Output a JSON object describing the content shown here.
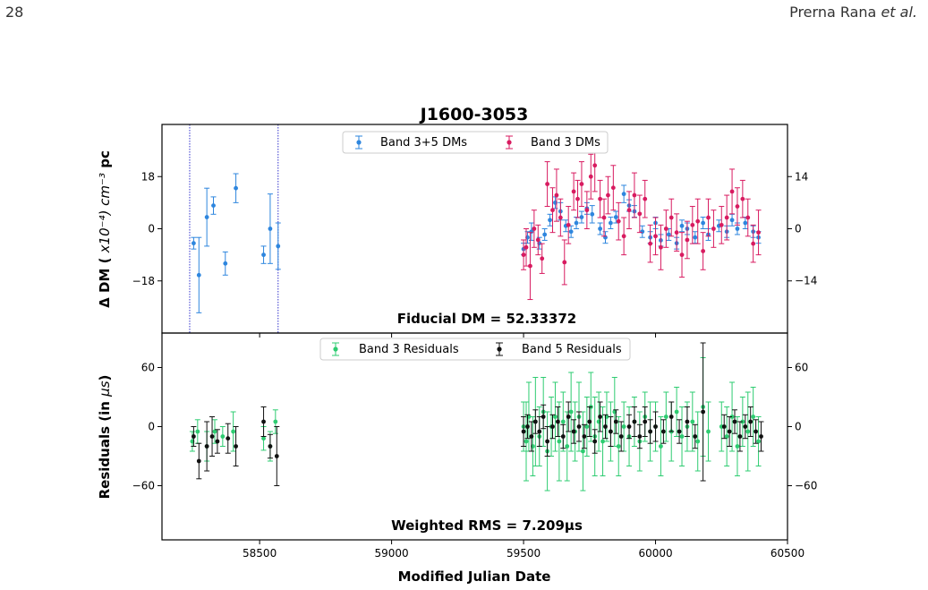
{
  "page": {
    "page_number": "28",
    "running_head_author": "Prerna Rana",
    "running_head_etal": "et al."
  },
  "chart_data": {
    "type": "scatter",
    "title": "J1600-3053",
    "xlabel": "Modified Julian Date",
    "xlim": [
      58130,
      60500
    ],
    "xticks": [
      58500,
      59000,
      59500,
      60000,
      60500
    ],
    "vertical_lines": [
      58235,
      58570
    ],
    "colors": {
      "band35_dm": "#2e86de",
      "band3_dm": "#d81b60",
      "band3_res": "#2ecc71",
      "band5_res": "#111111",
      "vline": "#3333cc"
    },
    "top_panel": {
      "ylabel_prefix": "Δ DM ( ",
      "ylabel_math": "x10⁻⁴) cm⁻³",
      "ylabel_suffix": " pc",
      "ylim": [
        -36,
        36
      ],
      "left_ticks": [
        -18,
        0,
        18
      ],
      "right_ticks": [
        -14,
        0,
        14
      ],
      "right_axis_scale": 0.7778,
      "annotation": "Fiducial DM = 52.33372",
      "legend": [
        "Band 3+5 DMs",
        "Band 3 DMs"
      ],
      "series": [
        {
          "name": "Band 3+5 DMs",
          "axis": "left",
          "x": [
            58250,
            58270,
            58300,
            58325,
            58370,
            58410,
            58515,
            58540,
            58570,
            59500,
            59515,
            59530,
            59560,
            59580,
            59600,
            59620,
            59640,
            59660,
            59680,
            59700,
            59720,
            59740,
            59760,
            59790,
            59810,
            59830,
            59850,
            59880,
            59900,
            59920,
            59950,
            59980,
            60000,
            60020,
            60050,
            60080,
            60100,
            60120,
            60150,
            60180,
            60200,
            60240,
            60270,
            60290,
            60310,
            60340,
            60370,
            60390
          ],
          "y": [
            -5,
            -16,
            4,
            8,
            -12,
            14,
            -9,
            0,
            -6,
            -7,
            -3,
            -1,
            -5,
            -2,
            3,
            9,
            6,
            1,
            -1,
            2,
            4,
            7,
            5,
            0,
            -3,
            2,
            4,
            12,
            8,
            6,
            -1,
            -3,
            2,
            -4,
            -2,
            -5,
            1,
            0,
            -3,
            2,
            -2,
            1,
            -1,
            3,
            0,
            2,
            -1,
            -3
          ],
          "err": [
            2,
            13,
            10,
            3,
            4,
            5,
            3,
            12,
            8,
            2,
            2,
            3,
            2,
            2,
            2,
            2,
            3,
            2,
            2,
            2,
            2,
            2,
            3,
            2,
            2,
            2,
            2,
            3,
            2,
            2,
            2,
            2,
            2,
            2,
            2,
            2,
            2,
            2,
            2,
            2,
            2,
            2,
            2,
            2,
            2,
            2,
            2,
            2
          ]
        },
        {
          "name": "Band 3 DMs",
          "axis": "right",
          "x": [
            59500,
            59510,
            59525,
            59540,
            59555,
            59570,
            59590,
            59610,
            59625,
            59640,
            59655,
            59670,
            59690,
            59705,
            59720,
            59740,
            59755,
            59770,
            59790,
            59805,
            59820,
            59840,
            59860,
            59880,
            59900,
            59920,
            59940,
            59960,
            59980,
            60000,
            60020,
            60040,
            60060,
            60080,
            60100,
            60120,
            60140,
            60160,
            60180,
            60200,
            60220,
            60250,
            60270,
            60290,
            60310,
            60330,
            60350,
            60370,
            60390
          ],
          "y": [
            -7,
            -5,
            -10,
            0,
            -3,
            -8,
            12,
            5,
            9,
            3,
            -9,
            1,
            10,
            8,
            12,
            5,
            14,
            17,
            8,
            3,
            9,
            11,
            2,
            -2,
            5,
            9,
            4,
            8,
            -4,
            -2,
            -5,
            0,
            3,
            -1,
            -7,
            -3,
            1,
            2,
            -6,
            3,
            0,
            1,
            3,
            10,
            6,
            8,
            3,
            -4,
            -1
          ],
          "err": [
            4,
            5,
            9,
            5,
            4,
            4,
            6,
            6,
            7,
            5,
            6,
            5,
            5,
            5,
            6,
            5,
            6,
            7,
            5,
            5,
            5,
            6,
            5,
            5,
            5,
            6,
            5,
            5,
            5,
            5,
            6,
            5,
            5,
            5,
            6,
            5,
            5,
            6,
            5,
            5,
            5,
            5,
            6,
            6,
            5,
            5,
            5,
            5,
            6
          ]
        }
      ]
    },
    "bottom_panel": {
      "ylabel_prefix": "Residuals (in ",
      "ylabel_math": "μs",
      "ylabel_suffix": ")",
      "ylim": [
        -115,
        95
      ],
      "left_ticks": [
        -60,
        0,
        60
      ],
      "right_ticks": [
        -60,
        0,
        60
      ],
      "annotation": "Weighted RMS = 7.209μs",
      "legend": [
        "Band 3 Residuals",
        "Band 5 Residuals"
      ],
      "series": [
        {
          "name": "Band 3 Residuals",
          "x": [
            58245,
            58265,
            58300,
            58330,
            58360,
            58400,
            58515,
            58540,
            58560,
            59500,
            59510,
            59520,
            59535,
            59545,
            59560,
            59575,
            59590,
            59605,
            59620,
            59635,
            59650,
            59665,
            59680,
            59695,
            59710,
            59725,
            59740,
            59755,
            59770,
            59785,
            59800,
            59815,
            59830,
            59845,
            59860,
            59880,
            59900,
            59920,
            59940,
            59960,
            59980,
            60000,
            60020,
            60040,
            60060,
            60080,
            60100,
            60120,
            60140,
            60160,
            60180,
            60200,
            60250,
            60270,
            60290,
            60310,
            60330,
            60350,
            60370,
            60390
          ],
          "y": [
            -15,
            -5,
            -20,
            -5,
            -10,
            -5,
            -12,
            -20,
            5,
            0,
            -15,
            10,
            -20,
            5,
            -10,
            15,
            -25,
            0,
            10,
            -15,
            5,
            -20,
            15,
            -5,
            10,
            -25,
            0,
            20,
            -10,
            5,
            -15,
            10,
            -5,
            15,
            -20,
            0,
            -10,
            5,
            -15,
            10,
            -5,
            0,
            -20,
            10,
            -5,
            15,
            -10,
            0,
            5,
            -15,
            20,
            -5,
            0,
            -10,
            10,
            -20,
            5,
            -5,
            10,
            -15
          ],
          "err": [
            10,
            12,
            15,
            12,
            10,
            20,
            12,
            15,
            12,
            25,
            40,
            35,
            30,
            45,
            30,
            35,
            40,
            30,
            35,
            40,
            30,
            35,
            40,
            30,
            35,
            40,
            30,
            35,
            40,
            30,
            35,
            25,
            30,
            35,
            30,
            25,
            30,
            25,
            30,
            25,
            30,
            25,
            30,
            25,
            30,
            25,
            30,
            25,
            30,
            30,
            50,
            30,
            25,
            30,
            35,
            30,
            25,
            40,
            30,
            25
          ]
        },
        {
          "name": "Band 5 Residuals",
          "x": [
            58250,
            58270,
            58300,
            58320,
            58340,
            58380,
            58410,
            58515,
            58540,
            58565,
            59500,
            59515,
            59530,
            59545,
            59560,
            59575,
            59590,
            59610,
            59630,
            59650,
            59670,
            59690,
            59710,
            59730,
            59750,
            59770,
            59790,
            59810,
            59830,
            59850,
            59870,
            59900,
            59920,
            59940,
            59960,
            59980,
            60000,
            60030,
            60060,
            60090,
            60120,
            60150,
            60180,
            60260,
            60280,
            60300,
            60320,
            60340,
            60360,
            60380,
            60400
          ],
          "y": [
            -10,
            -35,
            -20,
            -10,
            -15,
            -12,
            -20,
            5,
            -20,
            -30,
            -5,
            0,
            -10,
            5,
            -5,
            10,
            -15,
            0,
            5,
            -10,
            10,
            -5,
            0,
            -10,
            5,
            -15,
            10,
            0,
            -5,
            5,
            -10,
            0,
            5,
            -10,
            5,
            -5,
            0,
            -5,
            10,
            -5,
            5,
            -10,
            15,
            0,
            -5,
            5,
            -10,
            0,
            5,
            -5,
            -10
          ],
          "err": [
            10,
            18,
            25,
            20,
            12,
            15,
            20,
            15,
            12,
            30,
            15,
            12,
            15,
            12,
            15,
            12,
            15,
            12,
            15,
            12,
            15,
            12,
            15,
            12,
            15,
            12,
            15,
            12,
            15,
            12,
            15,
            12,
            15,
            12,
            15,
            12,
            15,
            12,
            15,
            12,
            15,
            12,
            70,
            12,
            15,
            12,
            15,
            12,
            15,
            12,
            15
          ]
        }
      ]
    }
  }
}
